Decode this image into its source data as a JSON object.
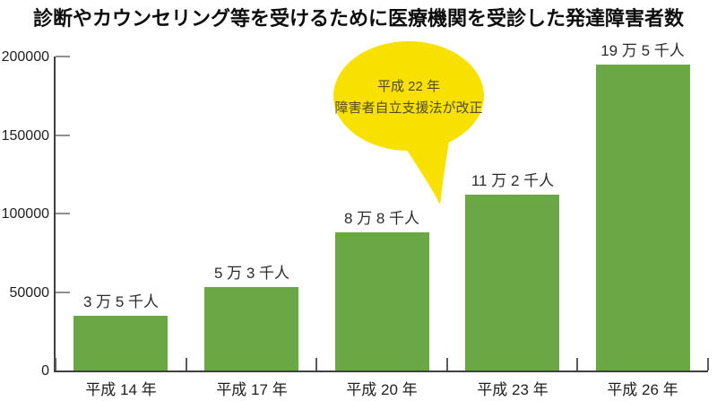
{
  "title": "診断やカウンセリング等を受けるために医療機関を受診した発達障害者数",
  "annotation": {
    "line1": "平成 22 年",
    "line2": "障害者自立支援法が改正"
  },
  "colors": {
    "bar": "#6aa845",
    "balloon": "#f8e000",
    "balloon_text": "#514d1d",
    "axis": "#404040",
    "ytick": "#8f8f8f",
    "xtick": "#5a5a5a",
    "label": "#1f1f1f"
  },
  "chart_data": {
    "type": "bar",
    "title": "診断やカウンセリング等を受けるために医療機関を受診した発達障害者数",
    "categories": [
      "平成 14 年",
      "平成 17 年",
      "平成 20 年",
      "平成 23 年",
      "平成 26 年"
    ],
    "values": [
      35000,
      53000,
      88000,
      112000,
      195000
    ],
    "value_labels": [
      "3 万 5 千人",
      "5 万 3 千人",
      "8 万 8 千人",
      "11 万 2 千人",
      "19 万 5 千人"
    ],
    "xlabel": "",
    "ylabel": "",
    "ylim": [
      0,
      200000
    ],
    "yticks": [
      0,
      50000,
      100000,
      150000,
      200000
    ],
    "ytick_labels": [
      "0",
      "50000",
      "100000",
      "150000",
      "200000"
    ],
    "grid": false,
    "legend": "none",
    "annotation": {
      "text": [
        "平成 22 年",
        "障害者自立支援法が改正"
      ],
      "shape": "yellow speech balloon pointing between 平成20年 and 平成23年 bars"
    }
  }
}
